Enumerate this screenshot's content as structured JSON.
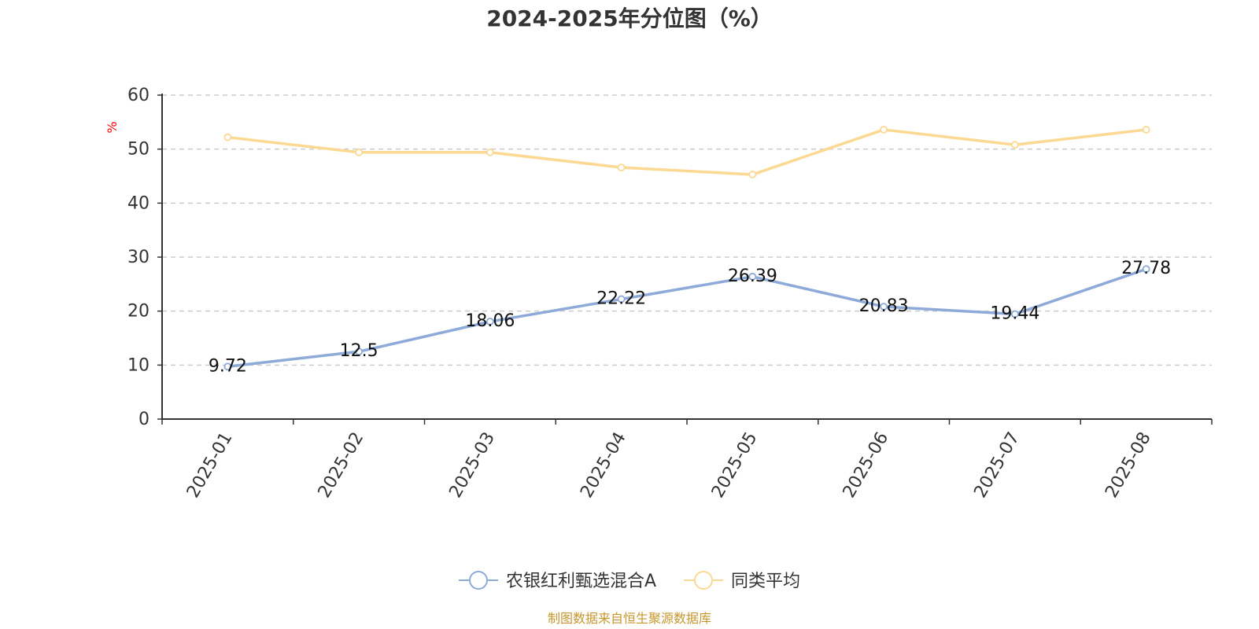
{
  "chart_data": {
    "type": "line",
    "title": "2024-2025年分位图（%）",
    "ylabel": "%",
    "xlabel": "",
    "categories": [
      "2025-01",
      "2025-02",
      "2025-03",
      "2025-04",
      "2025-05",
      "2025-06",
      "2025-07",
      "2025-08"
    ],
    "ylim": [
      0,
      60
    ],
    "yticks": [
      0,
      10,
      20,
      30,
      40,
      50,
      60
    ],
    "grid": true,
    "legend_position": "bottom",
    "series": [
      {
        "name": "农银红利甄选混合A",
        "color": "#8eaad8",
        "values": [
          9.72,
          12.5,
          18.06,
          22.22,
          26.39,
          20.83,
          19.44,
          27.78
        ],
        "labels": [
          "9.72",
          "12.5",
          "18.06",
          "22.22",
          "26.39",
          "20.83",
          "19.44",
          "27.78"
        ]
      },
      {
        "name": "同类平均",
        "color": "#fbd993",
        "values": [
          52.2,
          49.4,
          49.4,
          46.6,
          45.3,
          53.6,
          50.8,
          53.6
        ]
      }
    ],
    "source": "制图数据来自恒生聚源数据库"
  }
}
